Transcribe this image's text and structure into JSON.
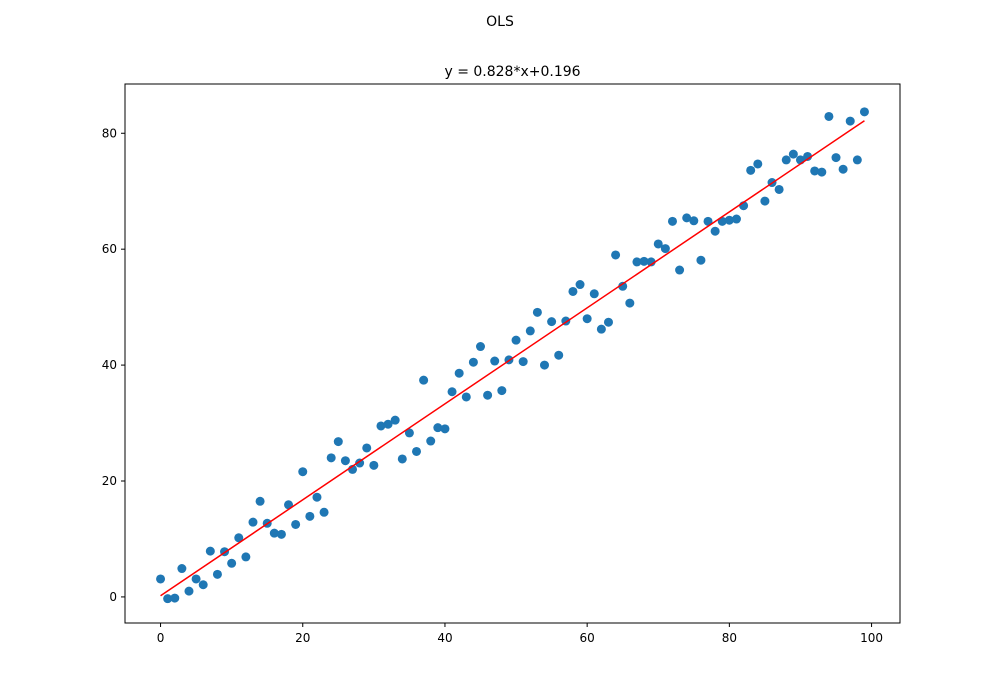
{
  "chart_data": {
    "type": "scatter",
    "suptitle": "OLS",
    "title": "y = 0.828*x+0.196",
    "xlabel": "",
    "ylabel": "",
    "xlim": [
      -5,
      104
    ],
    "ylim": [
      -4.5,
      88.5
    ],
    "xticks": [
      0,
      20,
      40,
      60,
      80,
      100
    ],
    "yticks": [
      0,
      20,
      40,
      60,
      80
    ],
    "grid": false,
    "series": [
      {
        "kind": "points",
        "color": "#1f77b4",
        "x": [
          0,
          1,
          2,
          3,
          4,
          5,
          6,
          7,
          8,
          9,
          10,
          11,
          12,
          13,
          14,
          15,
          16,
          17,
          18,
          19,
          20,
          21,
          22,
          23,
          24,
          25,
          26,
          27,
          28,
          29,
          30,
          31,
          32,
          33,
          34,
          35,
          36,
          37,
          38,
          39,
          40,
          41,
          42,
          43,
          44,
          45,
          46,
          47,
          48,
          49,
          50,
          51,
          52,
          53,
          54,
          55,
          56,
          57,
          58,
          59,
          60,
          61,
          62,
          63,
          64,
          65,
          66,
          67,
          68,
          69,
          70,
          71,
          72,
          73,
          74,
          75,
          76,
          77,
          78,
          79,
          80,
          81,
          82,
          83,
          84,
          85,
          86,
          87,
          88,
          89,
          90,
          91,
          92,
          93,
          94,
          95,
          96,
          97,
          98,
          99
        ],
        "y": [
          3.1,
          -0.3,
          -0.2,
          4.9,
          1.0,
          3.1,
          2.1,
          7.9,
          3.9,
          7.8,
          5.8,
          10.2,
          6.9,
          12.9,
          16.5,
          12.7,
          11.0,
          10.8,
          15.9,
          12.5,
          21.6,
          13.9,
          17.2,
          14.6,
          24.0,
          26.8,
          23.5,
          22.0,
          23.1,
          25.7,
          22.7,
          29.5,
          29.8,
          30.5,
          23.8,
          28.3,
          25.1,
          37.4,
          26.9,
          29.2,
          29.0,
          35.4,
          38.6,
          34.5,
          40.5,
          43.2,
          34.8,
          40.7,
          35.6,
          40.9,
          44.3,
          40.6,
          45.9,
          49.1,
          40.0,
          47.5,
          41.7,
          47.6,
          52.7,
          53.9,
          48.0,
          52.3,
          46.2,
          47.4,
          59.0,
          53.6,
          50.7,
          57.8,
          57.9,
          57.8,
          60.9,
          60.1,
          64.8,
          56.4,
          65.4,
          64.9,
          58.1,
          64.8,
          63.1,
          64.8,
          65.0,
          65.2,
          67.5,
          73.6,
          74.7,
          68.3,
          71.5,
          70.3,
          75.4,
          76.4,
          75.4,
          76.0,
          73.5,
          73.3,
          82.9,
          75.8,
          73.8,
          82.1,
          75.4,
          83.7
        ]
      },
      {
        "kind": "fit-line",
        "color": "#ff0000",
        "slope": 0.828,
        "intercept": 0.196,
        "x": [
          0,
          99
        ]
      }
    ]
  }
}
